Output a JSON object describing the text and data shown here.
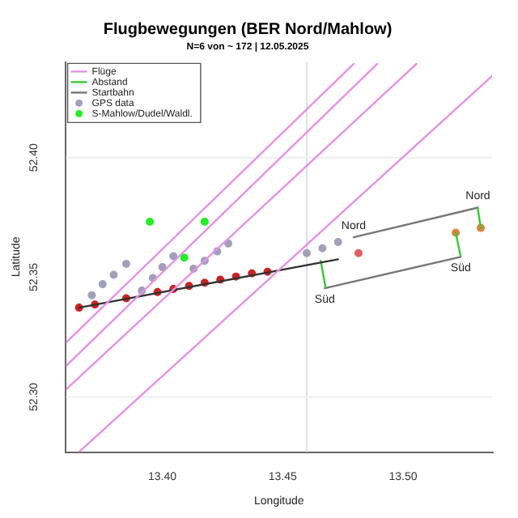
{
  "chart_data": {
    "type": "scatter",
    "title": "Flugbewegungen (BER Nord/Mahlow)",
    "subtitle": "N=6 von ~ 172 | 12.05.2025",
    "xlabel": "Longitude",
    "ylabel": "Latitude",
    "xlim": [
      13.36,
      13.537
    ],
    "ylim": [
      52.277,
      52.44
    ],
    "xticks": [
      {
        "value": 13.4,
        "label": "13.40"
      },
      {
        "value": 13.45,
        "label": "13.45"
      },
      {
        "value": 13.5,
        "label": "13.50"
      }
    ],
    "yticks": [
      {
        "value": 52.3,
        "label": "52.30"
      },
      {
        "value": 52.35,
        "label": "52.35"
      },
      {
        "value": 52.4,
        "label": "52.40"
      }
    ],
    "legend": "top left",
    "grid": false,
    "series": [
      {
        "name": "Flüge",
        "type": "line",
        "color": "#e890e8",
        "x": [
          13.3602,
          13.4795,
          null,
          13.3602,
          13.4893,
          null,
          13.3655,
          13.5369,
          null,
          13.3602,
          13.5056
        ],
        "values": [
          52.3229,
          52.4392,
          null,
          52.3131,
          52.4392,
          null,
          52.2771,
          52.434,
          null,
          52.3033,
          52.4392
        ]
      },
      {
        "type": "line",
        "color": "#333333",
        "x": [
          13.3654,
          13.473
        ],
        "values": [
          52.3373,
          52.3575
        ]
      },
      {
        "name": "Abstand",
        "type": "line",
        "color": "#33cc33",
        "x": [
          13.4658,
          13.4678,
          null,
          13.5219,
          13.5239,
          null,
          13.5323,
          13.531
        ],
        "values": [
          52.3569,
          52.3458,
          null,
          52.3686,
          52.3588,
          null,
          52.3706,
          52.3791
        ]
      },
      {
        "name": "Startbahn",
        "type": "line",
        "color": "#777777",
        "x": [
          13.4795,
          13.5311,
          null,
          13.4675,
          13.524
        ],
        "values": [
          52.3667,
          52.3791,
          null,
          52.3454,
          52.3585
        ]
      },
      {
        "name": "GPS data",
        "marker": "circle",
        "color": "#a0a0b8",
        "x": [
          null,
          13.3707,
          13.3752,
          13.3798,
          13.385,
          13.3915,
          13.3961,
          13.4,
          13.4046,
          13.413,
          13.4176,
          13.4228,
          13.4274,
          13.46,
          13.4665,
          13.473,
          13.3654,
          13.372,
          null,
          13.385,
          null,
          13.398,
          13.4046,
          13.4111,
          13.4176,
          13.4241,
          13.4306,
          13.4372,
          13.4437,
          13.4815,
          13.5219,
          13.5323
        ],
        "values": [
          null,
          52.3425,
          52.3471,
          52.351,
          52.3556,
          52.3444,
          52.3497,
          52.3542,
          52.3588,
          52.3536,
          52.3569,
          52.3608,
          52.3641,
          52.3601,
          52.3621,
          52.3647,
          52.3373,
          52.3386,
          null,
          52.3412,
          null,
          52.3438,
          52.3451,
          52.3464,
          52.3477,
          52.349,
          52.3503,
          52.3516,
          52.3523,
          52.3601,
          52.3686,
          52.3706
        ],
        "colors": [
          "#a0a0b8",
          "#a0a0b8",
          "#a0a0b8",
          "#a0a0b8",
          "#a0a0b8",
          "#a0a0b8",
          "#a0a0b8",
          "#a0a0b8",
          "#a0a0b8",
          "#a0a0b8",
          "#a0a0b8",
          "#a0a0b8",
          "#a0a0b8",
          "#a0a0b8",
          "#a0a0b8",
          "#a0a0b8",
          "#cc2222",
          "#cc2222",
          "#cc2222",
          "#cc2222",
          "#cc2222",
          "#cc2222",
          "#cc2222",
          "#cc2222",
          "#cc2222",
          "#cc2222",
          "#cc2222",
          "#cc2222",
          "#cc2222",
          "#e06060",
          "#e08040",
          "#e08040"
        ]
      },
      {
        "name": "S-Mahlow/Dudel/Waldl.",
        "marker": "circle",
        "color": "#22ee22",
        "x": [
          13.3948,
          13.4176,
          13.4091
        ],
        "values": [
          52.3732,
          52.3732,
          52.3582
        ]
      }
    ],
    "ref_lines": [
      {
        "axis": "x",
        "value": 13.46,
        "color": "#dde0ee"
      },
      {
        "axis": "y",
        "value": 52.4,
        "color": "#eeeeee"
      },
      {
        "axis": "y",
        "value": 52.3,
        "color": "#eeeeee"
      }
    ],
    "annotations": [
      {
        "text": "Nord",
        "x": 13.4795,
        "y": 52.3667
      },
      {
        "text": "Nord",
        "x": 13.5311,
        "y": 52.3791
      },
      {
        "text": "Süd",
        "x": 13.4675,
        "y": 52.3454
      },
      {
        "text": "Süd",
        "x": 13.524,
        "y": 52.3585
      }
    ]
  }
}
